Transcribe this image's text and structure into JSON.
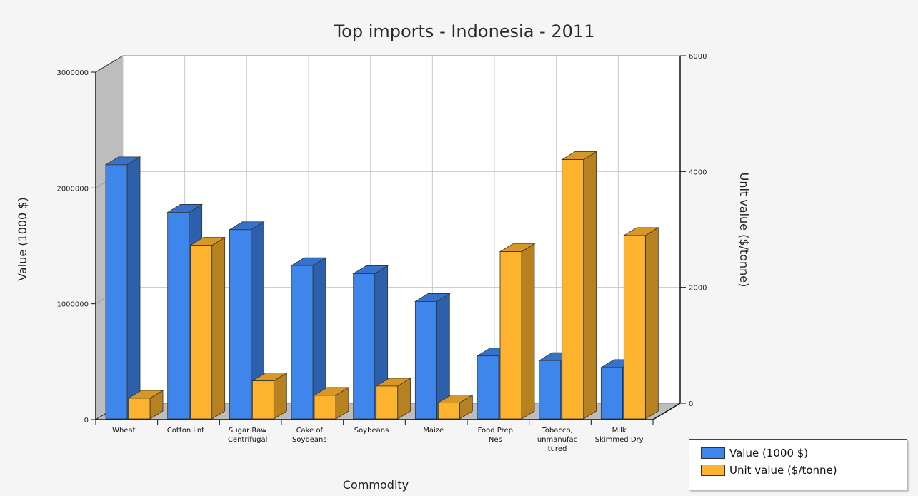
{
  "chart_data": {
    "type": "bar",
    "title": "Top imports - Indonesia - 2011",
    "xlabel": "Commodity",
    "ylabel": "Value (1000 $)",
    "y2label": "Unit value ($/tonne)",
    "categories": [
      "Wheat",
      "Cotton lint",
      "Sugar Raw Centrifugal",
      "Cake of Soybeans",
      "Soybeans",
      "Maize",
      "Food Prep Nes",
      "Tobacco, unmanufac tured",
      "Milk Skimmed Dry"
    ],
    "series": [
      {
        "name": "Value (1000 $)",
        "axis": "left",
        "color": "#3f86ec",
        "values": [
          2200000,
          1790000,
          1640000,
          1330000,
          1260000,
          1020000,
          550000,
          510000,
          450000
        ]
      },
      {
        "name": "Unit value ($/tonne)",
        "axis": "right",
        "color": "#fdb32e",
        "values": [
          370,
          3010,
          670,
          420,
          580,
          290,
          2900,
          4490,
          3180
        ]
      }
    ],
    "ylim": [
      0,
      3000000
    ],
    "yticks": [
      0,
      1000000,
      2000000,
      3000000
    ],
    "y2lim": [
      0,
      6000
    ],
    "y2ticks": [
      0,
      2000,
      4000,
      6000
    ],
    "grid": true,
    "legend": "bottom-right"
  }
}
